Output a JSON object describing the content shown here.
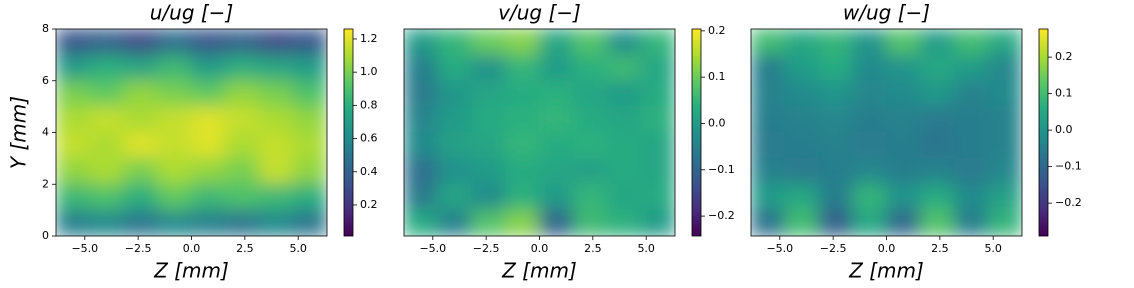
{
  "chart_data": [
    {
      "type": "heatmap",
      "title": "u/ug [−]",
      "xlabel": "Z [mm]",
      "ylabel": "Y [mm]",
      "xlim": [
        -6.35,
        6.35
      ],
      "ylim": [
        0,
        8
      ],
      "clim": [
        0.013,
        1.26
      ],
      "xticks": [
        {
          "value": -5,
          "label": "−5.0"
        },
        {
          "value": -2.5,
          "label": "−2.5"
        },
        {
          "value": 0,
          "label": "0.0"
        },
        {
          "value": 2.5,
          "label": "2.5"
        },
        {
          "value": 5,
          "label": "5.0"
        }
      ],
      "yticks": [
        0,
        2,
        4,
        6,
        8
      ],
      "cticks": [
        0.2,
        0.4,
        0.6,
        0.8,
        {
          "value": 1,
          "label": "1.0"
        },
        1.2
      ],
      "z": [
        [
          0.35,
          0.4,
          0.3,
          0.45,
          0.35,
          0.4,
          0.3,
          0.35
        ],
        [
          0.7,
          0.8,
          0.75,
          0.85,
          0.7,
          0.8,
          0.75,
          0.7
        ],
        [
          1.0,
          0.95,
          1.05,
          1.0,
          0.95,
          1.05,
          1.0,
          0.9
        ],
        [
          1.1,
          1.15,
          1.1,
          1.15,
          1.2,
          1.15,
          1.1,
          1.05
        ],
        [
          1.15,
          1.1,
          1.2,
          1.15,
          1.2,
          1.1,
          1.15,
          1.1
        ],
        [
          1.05,
          1.1,
          1.0,
          1.1,
          1.05,
          1.0,
          1.15,
          1.05
        ],
        [
          0.85,
          0.9,
          0.8,
          0.95,
          0.85,
          0.9,
          0.85,
          0.8
        ],
        [
          0.55,
          0.6,
          0.5,
          0.6,
          0.55,
          0.5,
          0.6,
          0.5
        ]
      ]
    },
    {
      "type": "heatmap",
      "title": "v/ug [−]",
      "xlabel": "Z [mm]",
      "xlim": [
        -6.35,
        6.35
      ],
      "ylim": [
        0,
        8
      ],
      "clim": [
        -0.243,
        0.204
      ],
      "xticks": [
        {
          "value": -5,
          "label": "−5.0"
        },
        {
          "value": -2.5,
          "label": "−2.5"
        },
        {
          "value": 0,
          "label": "0.0"
        },
        {
          "value": 2.5,
          "label": "2.5"
        },
        {
          "value": 5,
          "label": "5.0"
        }
      ],
      "cticks": [
        {
          "value": -0.2,
          "label": "−0.2"
        },
        {
          "value": -0.1,
          "label": "−0.1"
        },
        {
          "value": 0,
          "label": "0.0"
        },
        0.1,
        0.2
      ],
      "z": [
        [
          0.0,
          0.05,
          0.1,
          0.12,
          0.02,
          0.08,
          -0.02,
          0.05
        ],
        [
          -0.05,
          0.03,
          -0.02,
          0.05,
          0.0,
          0.04,
          0.06,
          0.02
        ],
        [
          -0.06,
          -0.01,
          0.02,
          0.03,
          0.04,
          0.02,
          0.0,
          0.03
        ],
        [
          -0.04,
          0.0,
          0.03,
          0.04,
          0.05,
          0.03,
          0.02,
          0.04
        ],
        [
          -0.03,
          0.01,
          0.02,
          0.05,
          0.03,
          0.04,
          0.03,
          0.02
        ],
        [
          -0.08,
          -0.02,
          0.0,
          0.03,
          0.02,
          0.01,
          0.03,
          0.02
        ],
        [
          -0.06,
          0.02,
          -0.03,
          0.04,
          0.0,
          0.05,
          0.02,
          0.03
        ],
        [
          0.03,
          -0.05,
          0.08,
          0.12,
          -0.1,
          0.06,
          0.04,
          0.0
        ]
      ]
    },
    {
      "type": "heatmap",
      "title": "w/ug [−]",
      "xlabel": "Z [mm]",
      "xlim": [
        -6.35,
        6.35
      ],
      "ylim": [
        0,
        8
      ],
      "clim": [
        -0.29,
        0.277
      ],
      "xticks": [
        {
          "value": -5,
          "label": "−5.0"
        },
        {
          "value": -2.5,
          "label": "−2.5"
        },
        {
          "value": 0,
          "label": "0.0"
        },
        {
          "value": 2.5,
          "label": "2.5"
        },
        {
          "value": 5,
          "label": "5.0"
        }
      ],
      "cticks": [
        {
          "value": -0.2,
          "label": "−0.2"
        },
        {
          "value": -0.1,
          "label": "−0.1"
        },
        {
          "value": 0,
          "label": "0.0"
        },
        0.1,
        0.2
      ],
      "z": [
        [
          0.1,
          0.05,
          0.08,
          0.0,
          0.12,
          0.02,
          0.1,
          0.05
        ],
        [
          -0.05,
          0.02,
          0.06,
          -0.02,
          0.0,
          0.05,
          0.02,
          -0.03
        ],
        [
          -0.04,
          -0.02,
          0.0,
          -0.03,
          -0.02,
          0.01,
          -0.04,
          -0.02
        ],
        [
          -0.05,
          -0.04,
          -0.03,
          -0.05,
          -0.04,
          -0.06,
          -0.05,
          -0.04
        ],
        [
          -0.06,
          -0.05,
          -0.04,
          -0.06,
          -0.05,
          -0.07,
          -0.05,
          -0.04
        ],
        [
          -0.04,
          -0.06,
          -0.05,
          -0.03,
          -0.05,
          -0.04,
          -0.06,
          -0.03
        ],
        [
          0.02,
          0.05,
          -0.05,
          0.08,
          0.0,
          0.06,
          -0.02,
          0.03
        ],
        [
          -0.08,
          0.1,
          -0.12,
          0.05,
          -0.1,
          0.12,
          -0.05,
          0.08
        ]
      ]
    }
  ]
}
